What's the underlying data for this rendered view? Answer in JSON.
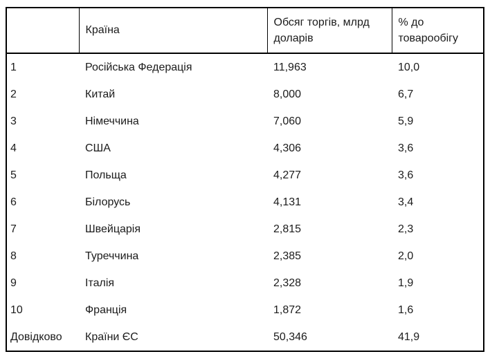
{
  "table": {
    "columns": [
      "",
      "Країна",
      "Обсяг торгів, млрд доларів",
      "% до товарообігу"
    ],
    "rows": [
      [
        "1",
        "Російська Федерація",
        "11,963",
        "10,0"
      ],
      [
        "2",
        "Китай",
        "8,000",
        "6,7"
      ],
      [
        "3",
        "Німеччина",
        "7,060",
        "5,9"
      ],
      [
        "4",
        "США",
        "4,306",
        "3,6"
      ],
      [
        "5",
        "Польща",
        "4,277",
        "3,6"
      ],
      [
        "6",
        "Білорусь",
        "4,131",
        "3,4"
      ],
      [
        "7",
        "Швейцарія",
        "2,815",
        "2,3"
      ],
      [
        "8",
        "Туреччина",
        "2,385",
        "2,0"
      ],
      [
        "9",
        "Італія",
        "2,328",
        "1,9"
      ],
      [
        "10",
        "Франція",
        "1,872",
        "1,6"
      ],
      [
        "Довідково",
        "Країни ЄС",
        "50,346",
        "41,9"
      ]
    ],
    "colors": {
      "border": "#000000",
      "text": "#1b1b1b",
      "background": "#ffffff"
    }
  }
}
